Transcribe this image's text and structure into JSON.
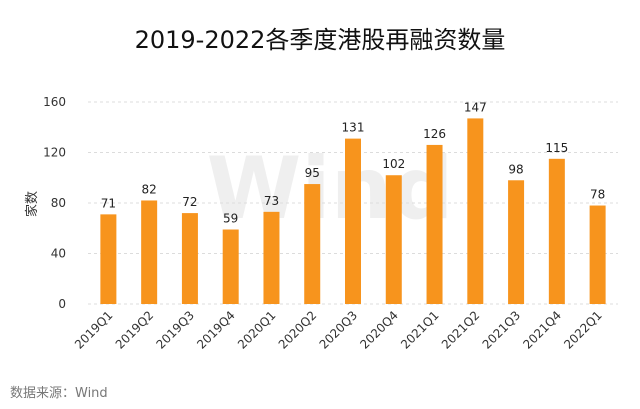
{
  "chart_data": {
    "type": "bar",
    "title": "2019-2022各季度港股再融资数量",
    "ylabel": "家数",
    "xlabel": "",
    "categories": [
      "2019Q1",
      "2019Q2",
      "2019Q3",
      "2019Q4",
      "2020Q1",
      "2020Q2",
      "2020Q3",
      "2020Q4",
      "2021Q1",
      "2021Q2",
      "2021Q3",
      "2021Q4",
      "2022Q1"
    ],
    "values": [
      71,
      82,
      72,
      59,
      73,
      95,
      131,
      102,
      126,
      147,
      98,
      115,
      78
    ],
    "ylim": [
      0,
      160
    ],
    "yticks": [
      0,
      40,
      80,
      120,
      160
    ],
    "grid": true,
    "bar_color": "#F7941D",
    "source": "数据来源：Wind",
    "watermark": "Wind"
  }
}
